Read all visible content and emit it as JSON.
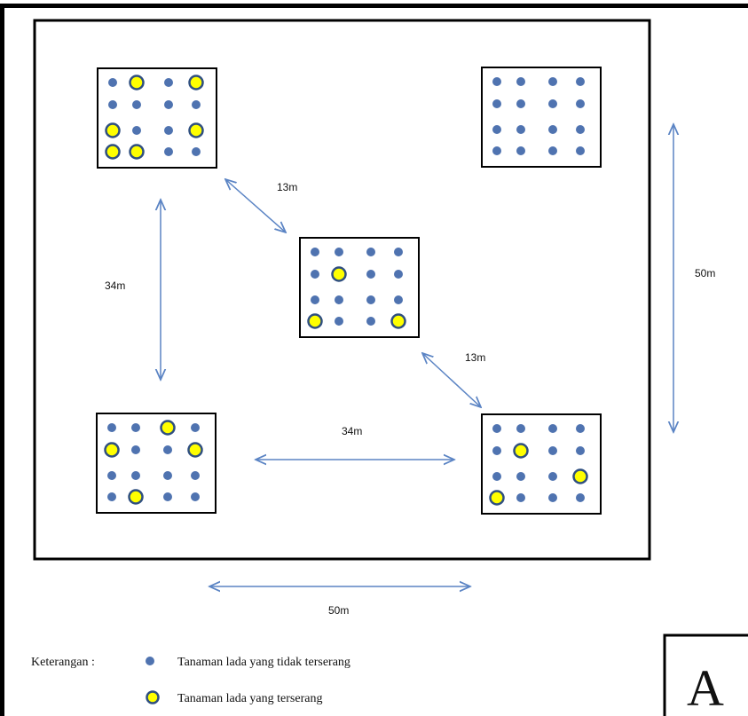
{
  "plots": [
    {
      "id": "top-left",
      "rows": [
        [
          0,
          1,
          0,
          1
        ],
        [
          0,
          0,
          0,
          0
        ],
        [
          1,
          0,
          0,
          1
        ],
        [
          1,
          1,
          0,
          0
        ]
      ]
    },
    {
      "id": "top-right",
      "rows": [
        [
          0,
          0,
          0,
          0
        ],
        [
          0,
          0,
          0,
          0
        ],
        [
          0,
          0,
          0,
          0
        ],
        [
          0,
          0,
          0,
          0
        ]
      ]
    },
    {
      "id": "center",
      "rows": [
        [
          0,
          0,
          0,
          0
        ],
        [
          0,
          1,
          0,
          0
        ],
        [
          0,
          0,
          0,
          0
        ],
        [
          1,
          0,
          0,
          1
        ]
      ]
    },
    {
      "id": "bottom-left",
      "rows": [
        [
          0,
          0,
          1,
          0
        ],
        [
          1,
          0,
          0,
          1
        ],
        [
          0,
          0,
          0,
          0
        ],
        [
          0,
          1,
          0,
          0
        ]
      ]
    },
    {
      "id": "bottom-right",
      "rows": [
        [
          0,
          0,
          0,
          0
        ],
        [
          0,
          1,
          0,
          0
        ],
        [
          0,
          0,
          0,
          1
        ],
        [
          1,
          0,
          0,
          0
        ]
      ]
    }
  ],
  "distances": {
    "diag_upper": "13m",
    "diag_lower": "13m",
    "left_vertical": "34m",
    "bottom_horizontal": "34m",
    "right_vertical": "50m",
    "field_width": "50m"
  },
  "legend": {
    "title": "Keterangan :",
    "healthy": "Tanaman lada yang tidak terserang",
    "infected": "Tanaman lada yang terserang"
  },
  "figure_letter": "A",
  "colors": {
    "healthy_fill": "#4f73b0",
    "infected_fill": "#ffff00",
    "infected_stroke": "#2f4f80",
    "arrow": "#5b84c4"
  }
}
